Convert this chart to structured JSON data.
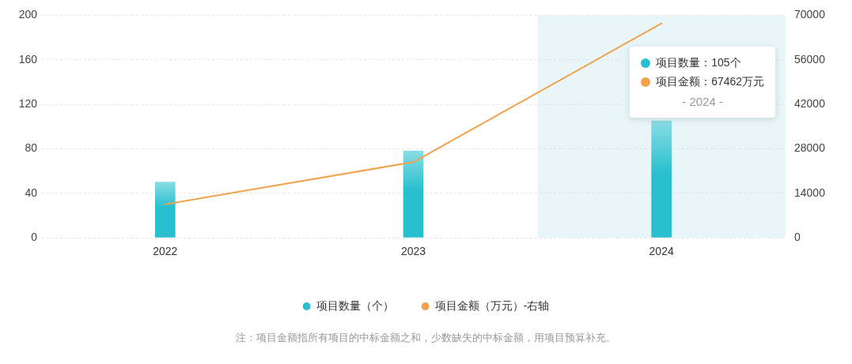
{
  "chart_data": {
    "type": "bar",
    "categories": [
      "2022",
      "2023",
      "2024"
    ],
    "series": [
      {
        "name": "项目数量（个）",
        "color": "#29bfcf",
        "values": [
          50,
          78,
          105
        ]
      },
      {
        "name": "项目金额（万元）-右轴",
        "type": "line",
        "axis": "y2",
        "color": "#f2a24b",
        "values": [
          10500,
          23800,
          67462
        ]
      }
    ],
    "ylim": [
      0,
      200
    ],
    "yticks": [
      0,
      40,
      80,
      120,
      160,
      200
    ],
    "y2lim": [
      0,
      70000
    ],
    "y2ticks": [
      0,
      14000,
      28000,
      42000,
      56000,
      70000
    ],
    "grid": "y",
    "legend": "bottom",
    "marker": "none",
    "line_style": "solid",
    "bands": [
      {
        "axis": "x",
        "from": "2024",
        "to": "2024",
        "color": "#e8f6f9"
      }
    ],
    "annotations": [
      "项目数量：105个",
      "项目金额：67462万元",
      "- 2024 -",
      "注：项目金额指所有项目的中标金额之和，少数缺失的中标金额，用项目预算补充。"
    ]
  }
}
